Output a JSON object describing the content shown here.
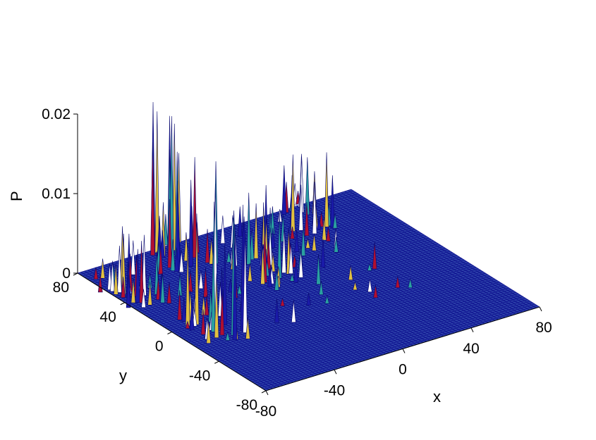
{
  "chart_data": {
    "type": "surface",
    "title": "",
    "xlabel": "x",
    "ylabel": "y",
    "zlabel": "P",
    "xlim": [
      -80,
      80
    ],
    "ylim": [
      -80,
      80
    ],
    "zlim": [
      0,
      0.02
    ],
    "xticks": [
      "-80",
      "-40",
      "0",
      "40",
      "80"
    ],
    "yticks": [
      "-80",
      "-40",
      "0",
      "40",
      "80"
    ],
    "zticks": [
      "0",
      "0.01",
      "0.02"
    ],
    "mesh_color": "#0a0a8c",
    "surface_fill": "#2b3fa8",
    "peak_colors": [
      "#1a1aa8",
      "#ffffff",
      "#b01030",
      "#2aa0a0",
      "#e0c040"
    ],
    "peak_clusters": [
      {
        "x": -72,
        "y": 42,
        "peak_height": 0.0085
      },
      {
        "x": -60,
        "y": -8,
        "peak_height": 0.0165
      },
      {
        "x": -30,
        "y": 66,
        "peak_height": 0.0184
      },
      {
        "x": -6,
        "y": 28,
        "peak_height": 0.0095
      },
      {
        "x": 40,
        "y": 66,
        "peak_height": 0.0105
      }
    ]
  }
}
